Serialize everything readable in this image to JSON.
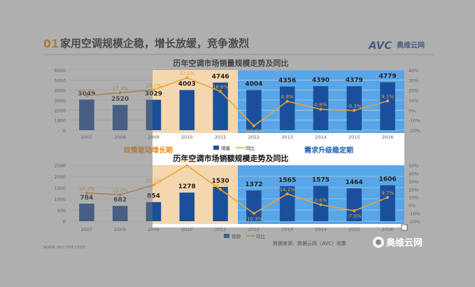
{
  "slide": {
    "section_number": "01",
    "heading": "家用空调规模企稳，增长放缓，竞争激烈",
    "logo_text": "AVC",
    "logo_cn": "奥维云网",
    "website": "www.avc-mr.com",
    "source": "数据来源：数据云网（AVC）收集",
    "watermark": "奥维云网",
    "band_left_label": "政策驱动增长期",
    "band_right_label": "需求升级稳定期"
  },
  "chart_data": [
    {
      "type": "bar",
      "title": "历年空调市场销量规模走势及同比",
      "categories": [
        "2007",
        "2008",
        "2009",
        "2010",
        "2011",
        "2012",
        "2013",
        "2014",
        "2015",
        "2016"
      ],
      "ylim": [
        0,
        6000
      ],
      "y_ticks": [
        "6000",
        "5000",
        "4000",
        "3000",
        "2000",
        "1000",
        "0"
      ],
      "y2lim": [
        -20,
        40
      ],
      "y2_ticks": [
        "40%",
        "30%",
        "20%",
        "10%",
        "0%",
        "-10%",
        "-20%"
      ],
      "series": [
        {
          "name": "销量",
          "kind": "bar",
          "values": [
            3049,
            2520,
            3029,
            4003,
            4746,
            4004,
            4356,
            4390,
            4379,
            4779
          ]
        },
        {
          "name": "同比",
          "kind": "line",
          "values": [
            14.5,
            17.3,
            20.2,
            32.2,
            18.6,
            -15.6,
            8.8,
            0.8,
            -0.3,
            9.1
          ]
        }
      ],
      "bar_labels": [
        "3049",
        "2520",
        "3029",
        "4003",
        "4746",
        "4004",
        "4356",
        "4390",
        "4379",
        "4779"
      ],
      "line_labels": [
        "14.5%",
        "17.3%",
        "20.2%",
        "32.2%",
        "18.6%",
        "-15.6%",
        "8.8%",
        "0.8%",
        "-0.3%",
        "9.1%"
      ],
      "legend": [
        "销量",
        "同比"
      ]
    },
    {
      "type": "bar",
      "title": "历年空调市场销额规模走势及同比",
      "categories": [
        "2007",
        "2008",
        "2009",
        "2010",
        "2011",
        "2012",
        "2013",
        "2014",
        "2015",
        "2016"
      ],
      "ylim": [
        0,
        2500
      ],
      "y_ticks": [
        "2500",
        "2000",
        "1500",
        "1000",
        "500",
        "0"
      ],
      "y2lim": [
        -20,
        50
      ],
      "y2_ticks": [
        "50%",
        "40%",
        "30%",
        "20%",
        "10%",
        "0%",
        "-10%",
        "-20%"
      ],
      "series": [
        {
          "name": "销额",
          "kind": "bar",
          "values": [
            784,
            682,
            854,
            1278,
            1530,
            1372,
            1565,
            1575,
            1464,
            1606
          ]
        },
        {
          "name": "同比",
          "kind": "line",
          "values": [
            15.2,
            13.0,
            25.2,
            49.7,
            19.7,
            -10.3,
            14.1,
            0.6,
            -7.0,
            9.7
          ]
        }
      ],
      "bar_labels": [
        "784",
        "682",
        "854",
        "1278",
        "1530",
        "1372",
        "1565",
        "1575",
        "1464",
        "1606"
      ],
      "line_labels": [
        "15.2%",
        "13.0%",
        "25.2%",
        "49.7%",
        "19.7%",
        "-10.3%",
        "14.1%",
        "0.6%",
        "-7.0%",
        "9.7%"
      ],
      "legend": [
        "销额",
        "同比"
      ]
    }
  ],
  "colors": {
    "bar": "#1a4f9c",
    "line": "#e8a33a",
    "band_left": "#f6d7ad",
    "band_right": "#58a6e8",
    "overlay": "#6e6e6e",
    "band_left_label": "#e8910f",
    "band_right_label": "#1f5fb0"
  }
}
